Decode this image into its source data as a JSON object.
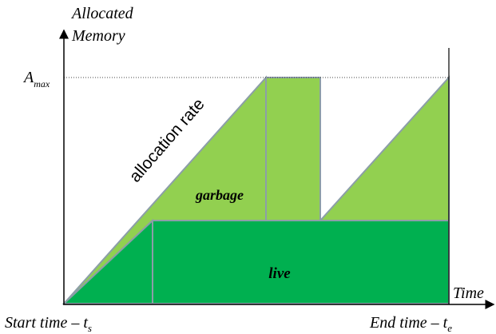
{
  "y_axis": {
    "label_lines": [
      "Allocated",
      "Memory"
    ]
  },
  "x_axis": {
    "label": "Time"
  },
  "max_level": {
    "symbol": "A",
    "subscript": "max"
  },
  "annotations": {
    "slope": "allocation rate",
    "garbage": "garbage",
    "live": "live"
  },
  "start": {
    "text": "Start time – t",
    "subscript": "s"
  },
  "end": {
    "text": "End time – t",
    "subscript": "e"
  }
}
